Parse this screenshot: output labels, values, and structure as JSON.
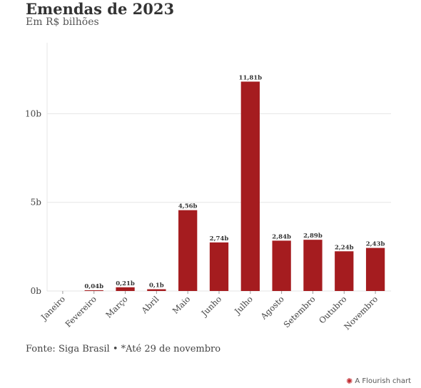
{
  "header": {
    "title": "Emendas de 2023",
    "subtitle": "Em R$ bilhões"
  },
  "footer": {
    "source": "Fonte: Siga Brasil • *Até 29 de novembro",
    "brand": "A Flourish chart",
    "brand_icon": "flourish-star-icon"
  },
  "colors": {
    "bar": "#a51c1f",
    "grid": "#e6e6e6",
    "axis": "#999999"
  },
  "chart_data": {
    "type": "bar",
    "title": "Emendas de 2023",
    "subtitle": "Em R$ bilhões",
    "xlabel": "",
    "ylabel": "",
    "ylim": [
      0,
      14
    ],
    "yticks": [
      0,
      5,
      10
    ],
    "ytick_labels": [
      "0b",
      "5b",
      "10b"
    ],
    "grid": true,
    "categories": [
      "Janeiro",
      "Fevereiro",
      "Março",
      "Abril",
      "Maio",
      "Junho",
      "Julho",
      "Agosto",
      "Setembro",
      "Outubro",
      "Novembro"
    ],
    "values": [
      0,
      0.04,
      0.21,
      0.1,
      4.56,
      2.74,
      11.81,
      2.84,
      2.89,
      2.24,
      2.43
    ],
    "value_labels": [
      "",
      "0,04b",
      "0,21b",
      "0,1b",
      "4,56b",
      "2,74b",
      "11,81b",
      "2,84b",
      "2,89b",
      "2,24b",
      "2,43b"
    ]
  }
}
